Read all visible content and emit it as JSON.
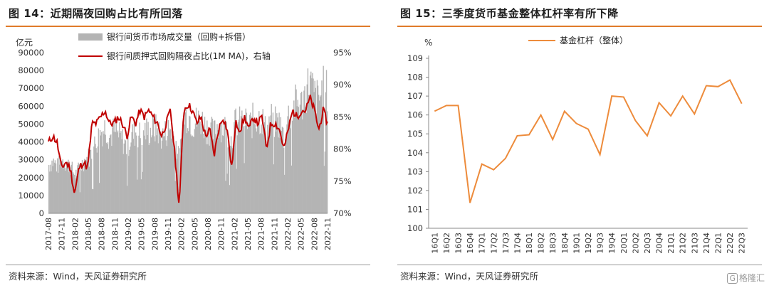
{
  "left": {
    "title": "图 14：近期隔夜回购占比有所回落",
    "source": "资料来源：Wind，天风证券研究所",
    "chart_data": {
      "type": "bar+line",
      "y_left_unit": "亿元",
      "y_left_ticks": [
        0,
        10000,
        20000,
        30000,
        40000,
        50000,
        60000,
        70000,
        80000,
        90000
      ],
      "y_left_ticks_label": [
        "0",
        "10000",
        "20000",
        "30000",
        "40000",
        "50000",
        "60000",
        "70000",
        "80000",
        "90000"
      ],
      "ylim_left": [
        0,
        90000
      ],
      "y_right_ticks_label": [
        "70%",
        "75%",
        "80%",
        "85%",
        "90%",
        "95%"
      ],
      "ylim_right": [
        70,
        95
      ],
      "x_tick_labels": [
        "2017-08",
        "2017-11",
        "2018-02",
        "2018-05",
        "2018-08",
        "2018-11",
        "2019-02",
        "2019-05",
        "2019-08",
        "2019-11",
        "2020-02",
        "2020-05",
        "2020-08",
        "2020-11",
        "2021-02",
        "2021-05",
        "2021-08",
        "2021-11",
        "2022-02",
        "2022-05",
        "2022-08",
        "2022-11"
      ],
      "legend": [
        {
          "name": "银行间货币市场成交量（回购+拆借）",
          "color": "#b4b4b4",
          "kind": "bar"
        },
        {
          "name": "银行间质押式回购隔夜占比(1M MA)，右轴",
          "color": "#c00000",
          "kind": "line"
        }
      ],
      "series_volume": {
        "name": "银行间货币市场成交量（回购+拆借）",
        "months": [
          "2017-08",
          "2017-09",
          "2017-10",
          "2017-11",
          "2017-12",
          "2018-01",
          "2018-02",
          "2018-03",
          "2018-04",
          "2018-05",
          "2018-06",
          "2018-07",
          "2018-08",
          "2018-09",
          "2018-10",
          "2018-11",
          "2018-12",
          "2019-01",
          "2019-02",
          "2019-03",
          "2019-04",
          "2019-05",
          "2019-06",
          "2019-07",
          "2019-08",
          "2019-09",
          "2019-10",
          "2019-11",
          "2019-12",
          "2020-01",
          "2020-02",
          "2020-03",
          "2020-04",
          "2020-05",
          "2020-06",
          "2020-07",
          "2020-08",
          "2020-09",
          "2020-10",
          "2020-11",
          "2020-12",
          "2021-01",
          "2021-02",
          "2021-03",
          "2021-04",
          "2021-05",
          "2021-06",
          "2021-07",
          "2021-08",
          "2021-09",
          "2021-10",
          "2021-11",
          "2021-12",
          "2022-01",
          "2022-02",
          "2022-03",
          "2022-04",
          "2022-05",
          "2022-06",
          "2022-07",
          "2022-08",
          "2022-09",
          "2022-10",
          "2022-11",
          "2022-12"
        ],
        "values": [
          28000,
          30000,
          27000,
          31000,
          29000,
          27000,
          22000,
          26000,
          30000,
          32000,
          36000,
          42000,
          47000,
          50000,
          44000,
          48000,
          45000,
          42000,
          38000,
          45000,
          47000,
          45000,
          48000,
          47000,
          49000,
          48000,
          44000,
          47000,
          49000,
          43000,
          30000,
          55000,
          58000,
          52000,
          53000,
          54000,
          50000,
          48000,
          46000,
          52000,
          50000,
          48000,
          42000,
          53000,
          52000,
          55000,
          50000,
          54000,
          55000,
          55000,
          46000,
          55000,
          52000,
          52000,
          44000,
          56000,
          60000,
          64000,
          62000,
          70000,
          76000,
          68000,
          65000,
          72000,
          70000
        ]
      },
      "series_overnight": {
        "name": "银行间质押式回购隔夜占比(1M MA)，右轴",
        "months": [
          "2017-08",
          "2017-09",
          "2017-10",
          "2017-11",
          "2017-12",
          "2018-01",
          "2018-02",
          "2018-03",
          "2018-04",
          "2018-05",
          "2018-06",
          "2018-07",
          "2018-08",
          "2018-09",
          "2018-10",
          "2018-11",
          "2018-12",
          "2019-01",
          "2019-02",
          "2019-03",
          "2019-04",
          "2019-05",
          "2019-06",
          "2019-07",
          "2019-08",
          "2019-09",
          "2019-10",
          "2019-11",
          "2019-12",
          "2020-01",
          "2020-02",
          "2020-03",
          "2020-04",
          "2020-05",
          "2020-06",
          "2020-07",
          "2020-08",
          "2020-09",
          "2020-10",
          "2020-11",
          "2020-12",
          "2021-01",
          "2021-02",
          "2021-03",
          "2021-04",
          "2021-05",
          "2021-06",
          "2021-07",
          "2021-08",
          "2021-09",
          "2021-10",
          "2021-11",
          "2021-12",
          "2022-01",
          "2022-02",
          "2022-03",
          "2022-04",
          "2022-05",
          "2022-06",
          "2022-07",
          "2022-08",
          "2022-09",
          "2022-10",
          "2022-11",
          "2022-12"
        ],
        "values": [
          81,
          82,
          81,
          77,
          78,
          77,
          73,
          77,
          78,
          77,
          84,
          84,
          85,
          86,
          84,
          84,
          85,
          84,
          82,
          85,
          84,
          86,
          85,
          86,
          85,
          84,
          82,
          84,
          86,
          79,
          71,
          86,
          87,
          86,
          84,
          85,
          82,
          83,
          79,
          83,
          85,
          83,
          77,
          84,
          83,
          85,
          83,
          85,
          84,
          85,
          80,
          84,
          84,
          83,
          80,
          83,
          86,
          85,
          86,
          86,
          88,
          86,
          83,
          86,
          84
        ]
      }
    }
  },
  "right": {
    "title": "图 15：三季度货币基金整体杠杆率有所下降",
    "source": "资料来源：Wind，天风证券研究所",
    "chart_data": {
      "type": "line",
      "y_unit": "%",
      "ylim": [
        100,
        109
      ],
      "y_ticks_label": [
        "100",
        "101",
        "102",
        "103",
        "104",
        "105",
        "106",
        "107",
        "108",
        "109"
      ],
      "legend": [
        {
          "name": "基金杠杆（整体）",
          "color": "#ed8b3b"
        }
      ],
      "categories": [
        "16Q1",
        "16Q2",
        "16Q3",
        "16Q4",
        "17Q1",
        "17Q2",
        "17Q3",
        "17Q4",
        "18Q1",
        "18Q2",
        "18Q3",
        "18Q4",
        "19Q1",
        "19Q2",
        "19Q3",
        "19Q4",
        "20Q1",
        "20Q2",
        "20Q3",
        "20Q4",
        "21Q1",
        "21Q2",
        "21Q3",
        "21Q4",
        "22Q1",
        "22Q2",
        "22Q3"
      ],
      "series": [
        {
          "name": "基金杠杆（整体）",
          "values": [
            106.2,
            106.5,
            106.5,
            101.35,
            103.4,
            103.1,
            103.7,
            104.9,
            104.95,
            106.0,
            104.7,
            106.2,
            105.55,
            105.25,
            103.9,
            107.0,
            106.95,
            105.7,
            104.9,
            106.65,
            105.95,
            107.0,
            106.05,
            107.55,
            107.5,
            107.85,
            106.6
          ]
        }
      ]
    }
  },
  "watermark": {
    "text": "格隆汇",
    "badge": "G"
  }
}
